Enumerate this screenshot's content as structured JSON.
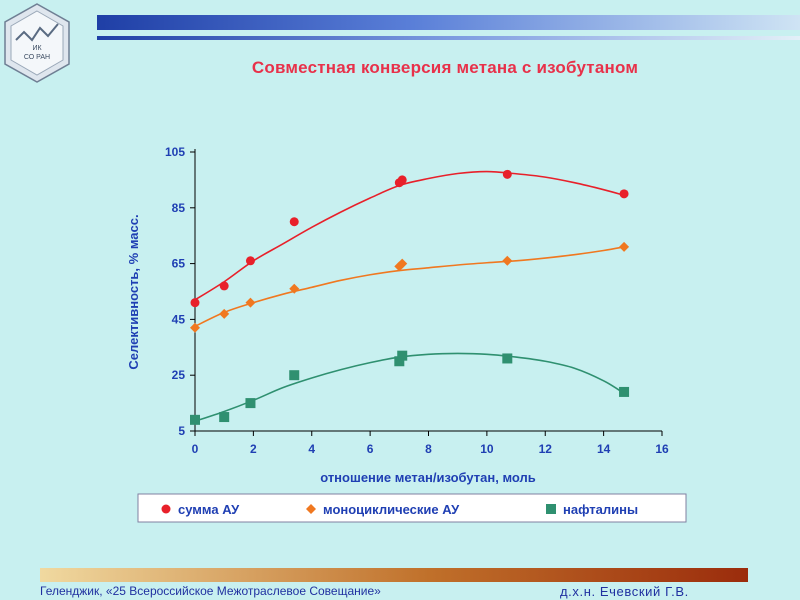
{
  "title": "Совместная конверсия метана с изобутаном",
  "logo": {
    "line1": "ИК",
    "line2": "СО РАН"
  },
  "footer": {
    "left": "Геленджик, «25 Всероссийское Межотраслевое Совещание»",
    "right": "д.х.н. Ечевский Г.В."
  },
  "chart_data": {
    "type": "scatter",
    "xlabel": "отношение метан/изобутан, моль",
    "ylabel": "Селективность, % масс.",
    "xlim": [
      0,
      16
    ],
    "ylim": [
      5,
      105
    ],
    "xticks": [
      0,
      2,
      4,
      6,
      8,
      10,
      12,
      14,
      16
    ],
    "yticks": [
      5,
      25,
      45,
      65,
      85,
      105
    ],
    "x_tick_labels": [
      "0",
      "2",
      "4",
      "6",
      "8",
      "10",
      "12",
      "14",
      "16"
    ],
    "y_tick_labels": [
      "5",
      "25",
      "45",
      "65",
      "85",
      "105"
    ],
    "grid": false,
    "legend_position": "bottom",
    "trendlines": true,
    "series": [
      {
        "name": "сумма АУ",
        "marker": "circle",
        "color": "#e8202a",
        "x": [
          0,
          1.0,
          1.9,
          3.4,
          7.0,
          7.1,
          10.7,
          14.7
        ],
        "y": [
          51,
          57,
          66,
          80,
          94,
          95,
          97,
          90
        ],
        "fit": [
          [
            0,
            52
          ],
          [
            1,
            58.5
          ],
          [
            2,
            66
          ],
          [
            3,
            72
          ],
          [
            4,
            78
          ],
          [
            5,
            83.5
          ],
          [
            6,
            88.5
          ],
          [
            7,
            93
          ],
          [
            8,
            95.5
          ],
          [
            9,
            97.3
          ],
          [
            10,
            98
          ],
          [
            11,
            97.2
          ],
          [
            12,
            96
          ],
          [
            13,
            94
          ],
          [
            14,
            91.5
          ],
          [
            14.7,
            89.5
          ]
        ]
      },
      {
        "name": "моноциклические АУ",
        "marker": "diamond",
        "color": "#f07820",
        "x": [
          0,
          1.0,
          1.9,
          3.4,
          7.0,
          7.1,
          10.7,
          14.7
        ],
        "y": [
          42,
          47,
          51,
          56,
          64,
          65,
          66,
          71
        ],
        "fit": [
          [
            0,
            42.5
          ],
          [
            1,
            47.5
          ],
          [
            2,
            51
          ],
          [
            3,
            54
          ],
          [
            4,
            56.5
          ],
          [
            5,
            59
          ],
          [
            6,
            61
          ],
          [
            7,
            62.5
          ],
          [
            8,
            63.5
          ],
          [
            9,
            64.5
          ],
          [
            10,
            65.3
          ],
          [
            11,
            66
          ],
          [
            12,
            67
          ],
          [
            13,
            68.2
          ],
          [
            14,
            69.7
          ],
          [
            14.7,
            71
          ]
        ]
      },
      {
        "name": "нафталины",
        "marker": "square",
        "color": "#2f9070",
        "x": [
          0,
          1.0,
          1.9,
          3.4,
          7.0,
          7.1,
          10.7,
          14.7
        ],
        "y": [
          9,
          10,
          15,
          25,
          30,
          32,
          31,
          19
        ],
        "fit": [
          [
            0,
            8.5
          ],
          [
            1,
            12
          ],
          [
            2,
            16
          ],
          [
            3,
            20.5
          ],
          [
            4,
            24
          ],
          [
            5,
            27
          ],
          [
            6,
            29.5
          ],
          [
            7,
            31.5
          ],
          [
            8,
            32.5
          ],
          [
            9,
            32.8
          ],
          [
            10,
            32.5
          ],
          [
            11,
            31.5
          ],
          [
            12,
            30
          ],
          [
            13,
            27.5
          ],
          [
            14,
            23
          ],
          [
            14.7,
            18.5
          ]
        ]
      }
    ]
  }
}
